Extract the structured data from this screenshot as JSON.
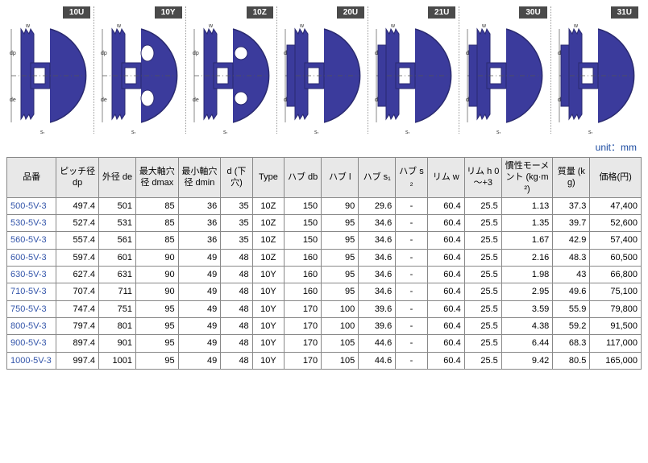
{
  "unit_label": "unit：mm",
  "diagram_tags": [
    "10U",
    "10Y",
    "10Z",
    "20U",
    "21U",
    "30U",
    "31U"
  ],
  "diagram_fill": "#3b3b9c",
  "diagram_stroke": "#2a2a70",
  "columns": [
    "品番",
    "ピッチ径 dp",
    "外径 de",
    "最大軸穴径 dmax",
    "最小軸穴径 dmin",
    "d (下穴)",
    "Type",
    "ハブ db",
    "ハブ l",
    "ハブ s₁",
    "ハブ s₂",
    "リム w",
    "リム h 0～+3",
    "慣性モーメント (kg·m²)",
    "質量 (kg)",
    "価格(円)"
  ],
  "rows": [
    {
      "product": "500-5V-3",
      "dp": "497.4",
      "de": "501",
      "dmax": "85",
      "dmin": "36",
      "dhole": "35",
      "type": "10Z",
      "db": "150",
      "hl": "90",
      "s1": "29.6",
      "s2": "-",
      "w": "60.4",
      "h": "25.5",
      "inertia": "1.13",
      "mass": "37.3",
      "price": "47,400"
    },
    {
      "product": "530-5V-3",
      "dp": "527.4",
      "de": "531",
      "dmax": "85",
      "dmin": "36",
      "dhole": "35",
      "type": "10Z",
      "db": "150",
      "hl": "95",
      "s1": "34.6",
      "s2": "-",
      "w": "60.4",
      "h": "25.5",
      "inertia": "1.35",
      "mass": "39.7",
      "price": "52,600"
    },
    {
      "product": "560-5V-3",
      "dp": "557.4",
      "de": "561",
      "dmax": "85",
      "dmin": "36",
      "dhole": "35",
      "type": "10Z",
      "db": "150",
      "hl": "95",
      "s1": "34.6",
      "s2": "-",
      "w": "60.4",
      "h": "25.5",
      "inertia": "1.67",
      "mass": "42.9",
      "price": "57,400"
    },
    {
      "product": "600-5V-3",
      "dp": "597.4",
      "de": "601",
      "dmax": "90",
      "dmin": "49",
      "dhole": "48",
      "type": "10Z",
      "db": "160",
      "hl": "95",
      "s1": "34.6",
      "s2": "-",
      "w": "60.4",
      "h": "25.5",
      "inertia": "2.16",
      "mass": "48.3",
      "price": "60,500"
    },
    {
      "product": "630-5V-3",
      "dp": "627.4",
      "de": "631",
      "dmax": "90",
      "dmin": "49",
      "dhole": "48",
      "type": "10Y",
      "db": "160",
      "hl": "95",
      "s1": "34.6",
      "s2": "-",
      "w": "60.4",
      "h": "25.5",
      "inertia": "1.98",
      "mass": "43",
      "price": "66,800"
    },
    {
      "product": "710-5V-3",
      "dp": "707.4",
      "de": "711",
      "dmax": "90",
      "dmin": "49",
      "dhole": "48",
      "type": "10Y",
      "db": "160",
      "hl": "95",
      "s1": "34.6",
      "s2": "-",
      "w": "60.4",
      "h": "25.5",
      "inertia": "2.95",
      "mass": "49.6",
      "price": "75,100"
    },
    {
      "product": "750-5V-3",
      "dp": "747.4",
      "de": "751",
      "dmax": "95",
      "dmin": "49",
      "dhole": "48",
      "type": "10Y",
      "db": "170",
      "hl": "100",
      "s1": "39.6",
      "s2": "-",
      "w": "60.4",
      "h": "25.5",
      "inertia": "3.59",
      "mass": "55.9",
      "price": "79,800"
    },
    {
      "product": "800-5V-3",
      "dp": "797.4",
      "de": "801",
      "dmax": "95",
      "dmin": "49",
      "dhole": "48",
      "type": "10Y",
      "db": "170",
      "hl": "100",
      "s1": "39.6",
      "s2": "-",
      "w": "60.4",
      "h": "25.5",
      "inertia": "4.38",
      "mass": "59.2",
      "price": "91,500"
    },
    {
      "product": "900-5V-3",
      "dp": "897.4",
      "de": "901",
      "dmax": "95",
      "dmin": "49",
      "dhole": "48",
      "type": "10Y",
      "db": "170",
      "hl": "105",
      "s1": "44.6",
      "s2": "-",
      "w": "60.4",
      "h": "25.5",
      "inertia": "6.44",
      "mass": "68.3",
      "price": "117,000"
    },
    {
      "product": "1000-5V-3",
      "dp": "997.4",
      "de": "1001",
      "dmax": "95",
      "dmin": "49",
      "dhole": "48",
      "type": "10Y",
      "db": "170",
      "hl": "105",
      "s1": "44.6",
      "s2": "-",
      "w": "60.4",
      "h": "25.5",
      "inertia": "9.42",
      "mass": "80.5",
      "price": "165,000"
    }
  ]
}
